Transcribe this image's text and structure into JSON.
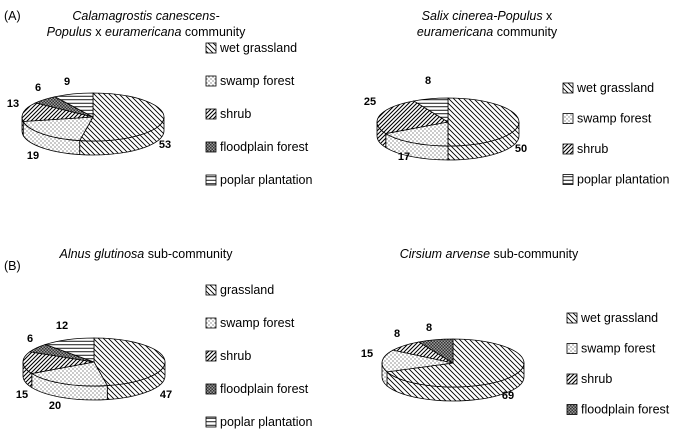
{
  "panels": [
    {
      "label": "(A)"
    },
    {
      "label": "(B)"
    }
  ],
  "chart_data": [
    {
      "type": "pie",
      "title_lines": [
        [
          {
            "text": "Calamagrostis canescens-",
            "italic": true
          }
        ],
        [
          {
            "text": "Populus",
            "italic": true
          },
          {
            "text": " x  ",
            "italic": false
          },
          {
            "text": "euramericana",
            "italic": true
          },
          {
            "text": " community",
            "italic": false
          }
        ]
      ],
      "categories": [
        "wet grassland",
        "swamp forest",
        "shrub",
        "floodplain forest",
        "poplar plantation"
      ],
      "values": [
        53,
        19,
        13,
        6,
        9
      ],
      "value_labels": [
        "53",
        "19",
        "13",
        "6",
        "9"
      ],
      "legend": "right",
      "style": "3d"
    },
    {
      "type": "pie",
      "title_lines": [
        [
          {
            "text": "Salix cinerea-Populus",
            "italic": true
          },
          {
            "text": " x",
            "italic": false
          }
        ],
        [
          {
            "text": "euramericana",
            "italic": true
          },
          {
            "text": " community",
            "italic": false
          }
        ]
      ],
      "categories": [
        "wet grassland",
        "swamp forest",
        "shrub",
        "poplar plantation"
      ],
      "values": [
        50,
        17,
        25,
        8
      ],
      "value_labels": [
        "50",
        "17",
        "25",
        "8"
      ],
      "legend": "right",
      "style": "3d"
    },
    {
      "type": "pie",
      "title_lines": [
        [
          {
            "text": "Alnus glutinosa",
            "italic": true
          },
          {
            "text": "  sub-community",
            "italic": false
          }
        ]
      ],
      "categories": [
        "grassland",
        "swamp forest",
        "shrub",
        "floodplain forest",
        "poplar plantation"
      ],
      "values": [
        47,
        20,
        15,
        6,
        12
      ],
      "value_labels": [
        "47",
        "20",
        "15",
        "6",
        "12"
      ],
      "legend": "right",
      "style": "3d"
    },
    {
      "type": "pie",
      "title_lines": [
        [
          {
            "text": "Cirsium arvense",
            "italic": true
          },
          {
            "text": "  sub-community",
            "italic": false
          }
        ]
      ],
      "categories": [
        "wet grassland",
        "swamp forest",
        "shrub",
        "floodplain forest"
      ],
      "values": [
        69,
        15,
        8,
        8
      ],
      "value_labels": [
        "69",
        "15",
        "8",
        "8"
      ],
      "legend": "right",
      "style": "3d"
    }
  ]
}
